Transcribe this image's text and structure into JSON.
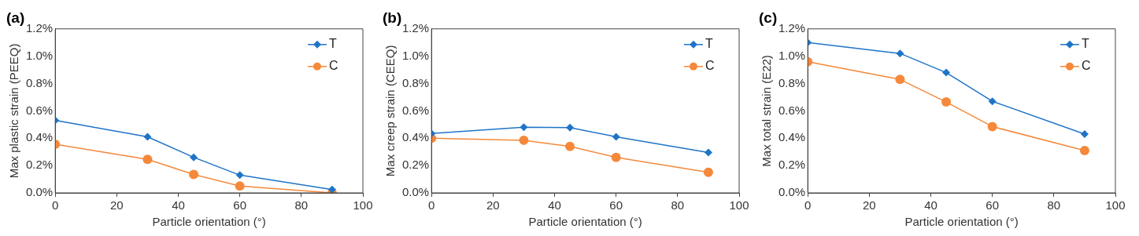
{
  "chart_data": [
    {
      "type": "line",
      "title": "(a)",
      "xlabel": "Particle orientation (°)",
      "ylabel": "Max plastic strain (PEEQ)",
      "x": [
        0,
        30,
        45,
        60,
        90
      ],
      "xlim": [
        0,
        100
      ],
      "xticks": [
        0,
        20,
        40,
        60,
        80,
        100
      ],
      "ylim": [
        0,
        1.2
      ],
      "yticks": [
        {
          "value": 0,
          "label": "0.0%"
        },
        {
          "value": 0.2,
          "label": "0.2%"
        },
        {
          "value": 0.4,
          "label": "0.4%"
        },
        {
          "value": 0.6,
          "label": "0.6%"
        },
        {
          "value": 0.8,
          "label": "0.8%"
        },
        {
          "value": 1.0,
          "label": "1.0%"
        },
        {
          "value": 1.2,
          "label": "1.2%"
        }
      ],
      "grid": false,
      "legend": "top right",
      "line_style": "solid",
      "series": [
        {
          "name": "T",
          "color": "#1f74c8",
          "marker": "diamond",
          "values": [
            0.53,
            0.41,
            0.26,
            0.13,
            0.025
          ]
        },
        {
          "name": "C",
          "color": "#f5883a",
          "marker": "circle",
          "values": [
            0.355,
            0.245,
            0.135,
            0.05,
            0.0
          ]
        }
      ]
    },
    {
      "type": "line",
      "title": "(b)",
      "xlabel": "Particle orientation (°)",
      "ylabel": "Max creep strain (CEEQ)",
      "x": [
        0,
        30,
        45,
        60,
        90
      ],
      "xlim": [
        0,
        100
      ],
      "xticks": [
        0,
        20,
        40,
        60,
        80,
        100
      ],
      "ylim": [
        0,
        1.2
      ],
      "yticks": [
        {
          "value": 0,
          "label": "0.0%"
        },
        {
          "value": 0.2,
          "label": "0.2%"
        },
        {
          "value": 0.4,
          "label": "0.4%"
        },
        {
          "value": 0.6,
          "label": "0.6%"
        },
        {
          "value": 0.8,
          "label": "0.8%"
        },
        {
          "value": 1.0,
          "label": "1.0%"
        },
        {
          "value": 1.2,
          "label": "1.2%"
        }
      ],
      "grid": false,
      "legend": "top right",
      "line_style": "solid",
      "series": [
        {
          "name": "T",
          "color": "#1f74c8",
          "marker": "diamond",
          "values": [
            0.435,
            0.48,
            0.478,
            0.41,
            0.295
          ]
        },
        {
          "name": "C",
          "color": "#f5883a",
          "marker": "circle",
          "values": [
            0.4,
            0.385,
            0.34,
            0.26,
            0.15
          ]
        }
      ]
    },
    {
      "type": "line",
      "title": "(c)",
      "xlabel": "Particle orientation (°)",
      "ylabel": "Max total strain (E22)",
      "x": [
        0,
        30,
        45,
        60,
        90
      ],
      "xlim": [
        0,
        100
      ],
      "xticks": [
        0,
        20,
        40,
        60,
        80,
        100
      ],
      "ylim": [
        0,
        1.2
      ],
      "yticks": [
        {
          "value": 0,
          "label": "0.0%"
        },
        {
          "value": 0.2,
          "label": "0.2%"
        },
        {
          "value": 0.4,
          "label": "0.4%"
        },
        {
          "value": 0.6,
          "label": "0.6%"
        },
        {
          "value": 0.8,
          "label": "0.8%"
        },
        {
          "value": 1.0,
          "label": "1.0%"
        },
        {
          "value": 1.2,
          "label": "1.2%"
        }
      ],
      "grid": false,
      "legend": "top right",
      "line_style": "solid",
      "series": [
        {
          "name": "T",
          "color": "#1f74c8",
          "marker": "diamond",
          "values": [
            1.1,
            1.02,
            0.88,
            0.67,
            0.43
          ]
        },
        {
          "name": "C",
          "color": "#f5883a",
          "marker": "circle",
          "values": [
            0.96,
            0.83,
            0.665,
            0.485,
            0.31
          ]
        }
      ]
    }
  ]
}
